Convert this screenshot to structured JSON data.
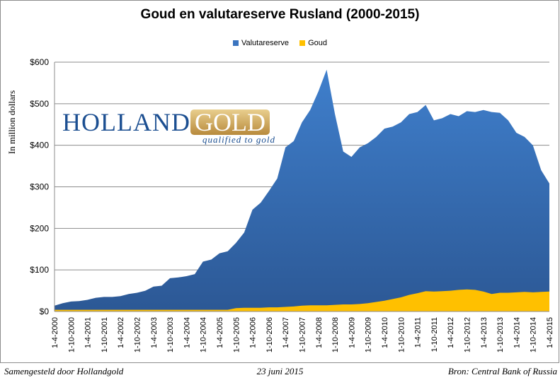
{
  "chart_data": {
    "type": "area",
    "title": "Goud en valutareserve Rusland (2000-2015)",
    "ylabel": "In million dollars",
    "xlabel": "",
    "ylim": [
      0,
      600
    ],
    "yticks": [
      "$0",
      "$100",
      "$200",
      "$300",
      "$400",
      "$500",
      "$600"
    ],
    "ytick_values": [
      0,
      100,
      200,
      300,
      400,
      500,
      600
    ],
    "grid": true,
    "legend_position": "top",
    "xtick_labels": [
      "1-4-2000",
      "1-10-2000",
      "1-4-2001",
      "1-10-2001",
      "1-4-2002",
      "1-10-2002",
      "1-4-2003",
      "1-10-2003",
      "1-4-2004",
      "1-10-2004",
      "1-4-2005",
      "1-10-2005",
      "1-4-2006",
      "1-10-2006",
      "1-4-2007",
      "1-10-2007",
      "1-4-2008",
      "1-10-2008",
      "1-4-2009",
      "1-10-2009",
      "1-4-2010",
      "1-10-2010",
      "1-4-2011",
      "1-10-2011",
      "1-4-2012",
      "1-10-2012",
      "1-4-2013",
      "1-10-2013",
      "1-4-2014",
      "1-10-2014",
      "1-4-2015"
    ],
    "x_note": "quarterly points from 1-4-2000 to 1-4-2015",
    "series": [
      {
        "name": "Valutareserve",
        "color": "#3a74bf",
        "values": [
          14,
          20,
          24,
          25,
          28,
          33,
          35,
          35,
          37,
          42,
          45,
          50,
          60,
          62,
          80,
          82,
          85,
          90,
          120,
          125,
          140,
          145,
          165,
          190,
          245,
          262,
          290,
          320,
          395,
          410,
          455,
          485,
          530,
          582,
          475,
          385,
          372,
          395,
          405,
          420,
          440,
          445,
          455,
          475,
          480,
          497,
          460,
          465,
          475,
          470,
          482,
          480,
          485,
          480,
          478,
          460,
          430,
          420,
          400,
          340,
          308
        ]
      },
      {
        "name": "Goud",
        "color": "#ffc000",
        "values": [
          4,
          4,
          4,
          4,
          4,
          4,
          4,
          4,
          4,
          4,
          4,
          4,
          4,
          4,
          4,
          4,
          4,
          4,
          4,
          4,
          4,
          4,
          8,
          9,
          9,
          9,
          10,
          10,
          11,
          12,
          14,
          15,
          15,
          15,
          16,
          17,
          17,
          18,
          20,
          23,
          26,
          30,
          34,
          40,
          44,
          49,
          48,
          49,
          50,
          52,
          53,
          52,
          48,
          42,
          45,
          45,
          46,
          47,
          46,
          47,
          48
        ]
      }
    ]
  },
  "logo": {
    "brand_left": "HOLLAND",
    "brand_right": "GOLD",
    "tagline": "qualified to gold"
  },
  "footer": {
    "left": "Samengesteld door Hollandgold",
    "center": "23 juni 2015",
    "right": "Bron: Central Bank of Russia"
  }
}
